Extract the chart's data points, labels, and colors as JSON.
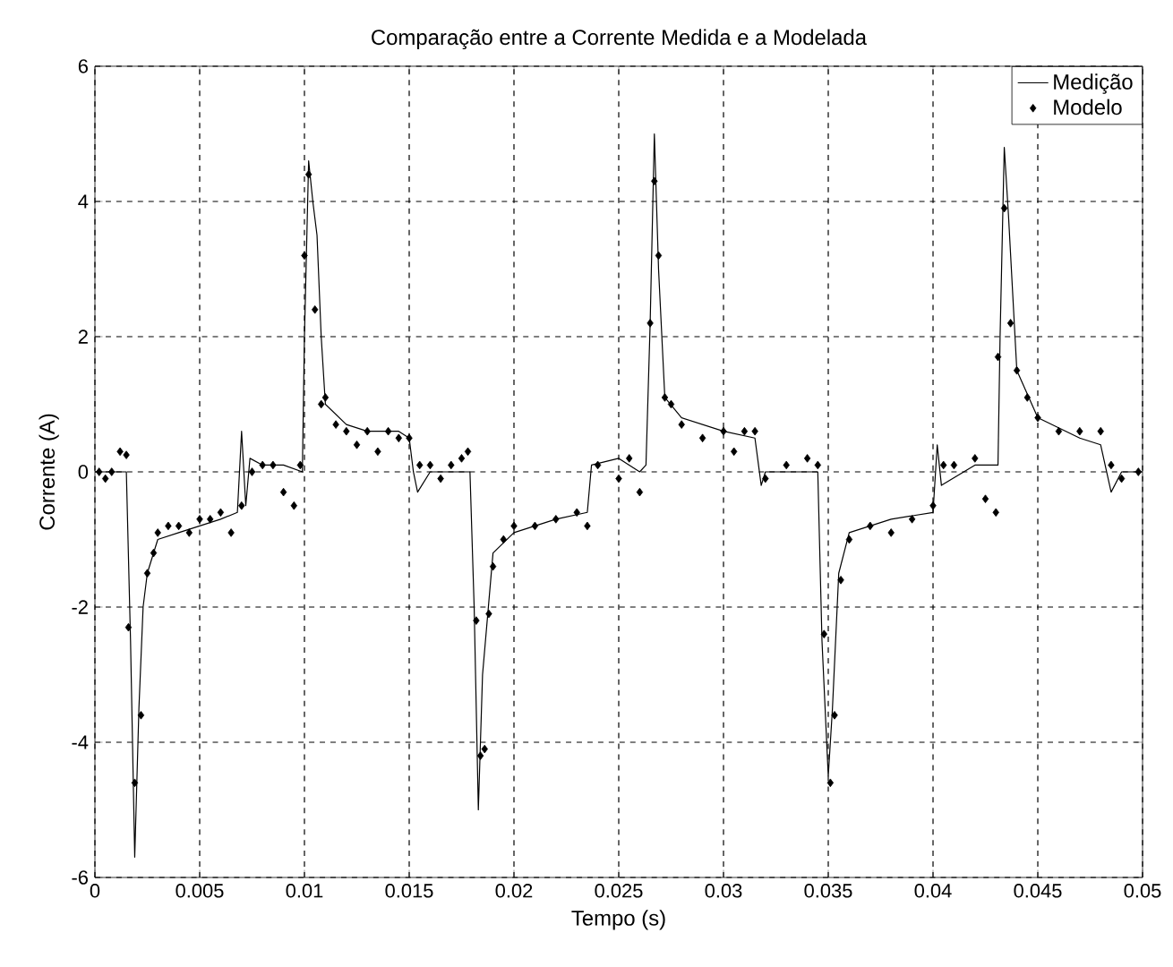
{
  "chart_data": {
    "type": "line",
    "title": "Comparação entre a Corrente Medida e a Modelada",
    "xlabel": "Tempo (s)",
    "ylabel": "Corrente (A)",
    "xlim": [
      0,
      0.05
    ],
    "ylim": [
      -6,
      6
    ],
    "xticks": [
      0,
      0.005,
      0.01,
      0.015,
      0.02,
      0.025,
      0.03,
      0.035,
      0.04,
      0.045,
      0.05
    ],
    "yticks": [
      -6,
      -4,
      -2,
      0,
      2,
      4,
      6
    ],
    "grid": true,
    "legend": "top right",
    "series": [
      {
        "name": "Medição",
        "color": "#000000",
        "marker": "none",
        "line_style": "solid",
        "x": [
          0,
          0.0015,
          0.0017,
          0.0019,
          0.0021,
          0.0023,
          0.0025,
          0.003,
          0.004,
          0.005,
          0.006,
          0.0068,
          0.007,
          0.0072,
          0.0074,
          0.008,
          0.009,
          0.0099,
          0.01,
          0.0102,
          0.0104,
          0.0106,
          0.0108,
          0.011,
          0.012,
          0.013,
          0.0145,
          0.015,
          0.0152,
          0.0154,
          0.016,
          0.0179,
          0.0181,
          0.0183,
          0.0185,
          0.019,
          0.02,
          0.022,
          0.0235,
          0.0237,
          0.025,
          0.026,
          0.0263,
          0.0265,
          0.0267,
          0.0269,
          0.0272,
          0.028,
          0.03,
          0.0315,
          0.0318,
          0.032,
          0.0345,
          0.0347,
          0.035,
          0.0352,
          0.0355,
          0.036,
          0.038,
          0.04,
          0.0402,
          0.0404,
          0.042,
          0.0431,
          0.0432,
          0.0434,
          0.0436,
          0.044,
          0.045,
          0.047,
          0.048,
          0.0485,
          0.049,
          0.05
        ],
        "values": [
          0,
          0,
          -2.5,
          -5.7,
          -3.5,
          -2,
          -1.5,
          -1,
          -0.9,
          -0.8,
          -0.7,
          -0.6,
          0.6,
          -0.5,
          0.2,
          0.1,
          0.1,
          0,
          2,
          4.6,
          4,
          3.5,
          2,
          1,
          0.7,
          0.6,
          0.6,
          0.5,
          0,
          -0.3,
          0,
          0,
          -2,
          -5,
          -3,
          -1.2,
          -0.9,
          -0.7,
          -0.6,
          0.1,
          0.2,
          0,
          0.1,
          2.2,
          5,
          3,
          1.1,
          0.8,
          0.6,
          0.5,
          -0.2,
          0,
          0,
          -2.5,
          -4.5,
          -3.5,
          -1.5,
          -0.9,
          -0.7,
          -0.6,
          0.4,
          -0.2,
          0.1,
          0.1,
          2,
          4.8,
          3.8,
          1.5,
          0.8,
          0.5,
          0.4,
          -0.3,
          0,
          0
        ]
      },
      {
        "name": "Modelo",
        "type": "scatter",
        "color": "#000000",
        "marker": "diamond",
        "x": [
          0.0002,
          0.0005,
          0.0008,
          0.0012,
          0.0015,
          0.0016,
          0.0019,
          0.0022,
          0.0025,
          0.0028,
          0.003,
          0.0035,
          0.004,
          0.0045,
          0.005,
          0.0055,
          0.006,
          0.0065,
          0.007,
          0.0075,
          0.008,
          0.0085,
          0.009,
          0.0095,
          0.0098,
          0.01,
          0.0102,
          0.0105,
          0.0108,
          0.011,
          0.0115,
          0.012,
          0.0125,
          0.013,
          0.0135,
          0.014,
          0.0145,
          0.015,
          0.0155,
          0.016,
          0.0165,
          0.017,
          0.0175,
          0.0178,
          0.0182,
          0.0184,
          0.0186,
          0.0188,
          0.019,
          0.0195,
          0.02,
          0.021,
          0.022,
          0.023,
          0.0235,
          0.024,
          0.025,
          0.0255,
          0.026,
          0.0265,
          0.0267,
          0.0269,
          0.0272,
          0.0275,
          0.028,
          0.029,
          0.03,
          0.0305,
          0.031,
          0.0315,
          0.032,
          0.033,
          0.034,
          0.0345,
          0.0348,
          0.0351,
          0.0353,
          0.0356,
          0.036,
          0.037,
          0.038,
          0.039,
          0.04,
          0.0405,
          0.041,
          0.042,
          0.0425,
          0.043,
          0.0431,
          0.0434,
          0.0437,
          0.044,
          0.0445,
          0.045,
          0.046,
          0.047,
          0.048,
          0.0485,
          0.049,
          0.0498
        ],
        "values": [
          0,
          -0.1,
          0,
          0.3,
          0.25,
          -2.3,
          -4.6,
          -3.6,
          -1.5,
          -1.2,
          -0.9,
          -0.8,
          -0.8,
          -0.9,
          -0.7,
          -0.7,
          -0.6,
          -0.9,
          -0.5,
          0,
          0.1,
          0.1,
          -0.3,
          -0.5,
          0.1,
          3.2,
          4.4,
          2.4,
          1,
          1.1,
          0.7,
          0.6,
          0.4,
          0.6,
          0.3,
          0.6,
          0.5,
          0.5,
          0.1,
          0.1,
          -0.1,
          0.1,
          0.2,
          0.3,
          -2.2,
          -4.2,
          -4.1,
          -2.1,
          -1.4,
          -1,
          -0.8,
          -0.8,
          -0.7,
          -0.6,
          -0.8,
          0.1,
          -0.1,
          0.2,
          -0.3,
          2.2,
          4.3,
          3.2,
          1.1,
          1,
          0.7,
          0.5,
          0.6,
          0.3,
          0.6,
          0.6,
          -0.1,
          0.1,
          0.2,
          0.1,
          -2.4,
          -4.6,
          -3.6,
          -1.6,
          -1,
          -0.8,
          -0.9,
          -0.7,
          -0.5,
          0.1,
          0.1,
          0.2,
          -0.4,
          -0.6,
          1.7,
          3.9,
          2.2,
          1.5,
          1.1,
          0.8,
          0.6,
          0.6,
          0.6,
          0.1,
          -0.1,
          0
        ]
      }
    ]
  }
}
